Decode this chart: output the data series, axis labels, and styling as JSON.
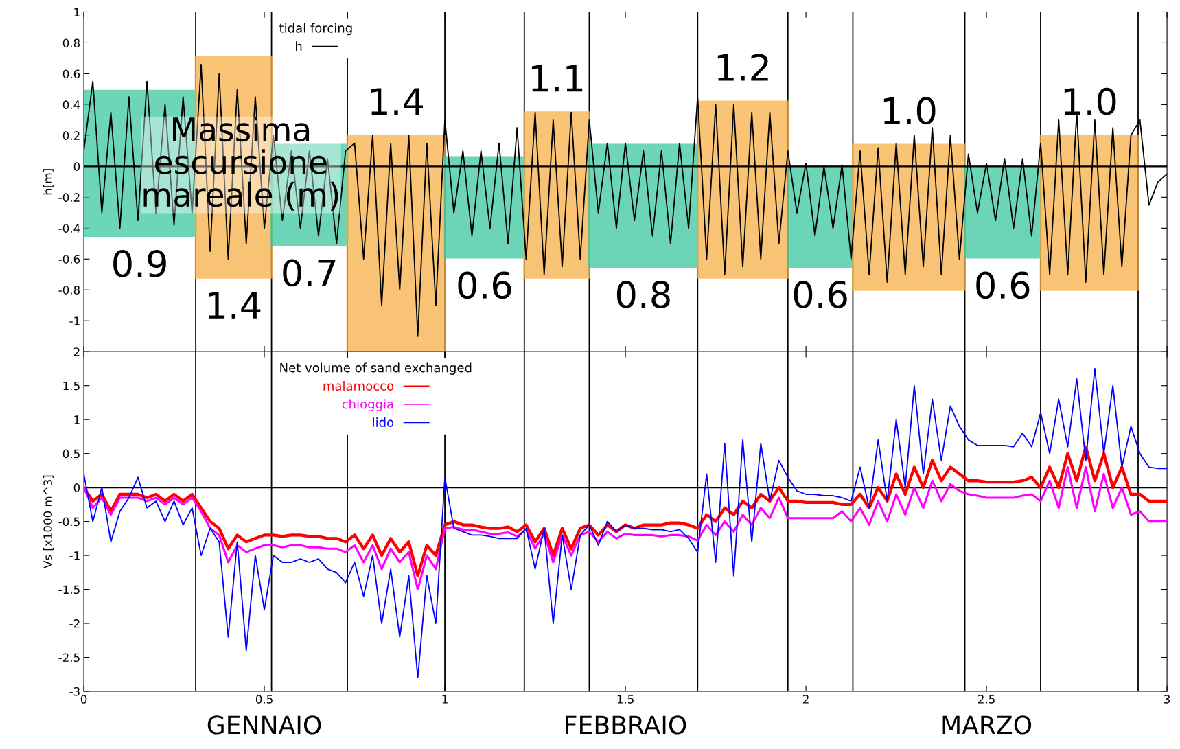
{
  "chart_data": [
    {
      "type": "line",
      "ylabel": "h[m]",
      "legend_title": "tidal forcing",
      "legend": "top left",
      "grid": false,
      "tick_labels": "y",
      "xlim": [
        0,
        3
      ],
      "xticks": [
        0,
        0.5,
        1,
        1.5,
        2,
        2.5,
        3
      ],
      "ylim": [
        -1.2,
        1
      ],
      "yticks": [
        -1,
        -0.8,
        -0.6,
        -0.4,
        -0.2,
        0,
        0.2,
        0.4,
        0.6,
        0.8,
        1
      ],
      "x": [
        0,
        0.025,
        0.05,
        0.075,
        0.1,
        0.125,
        0.15,
        0.175,
        0.2,
        0.225,
        0.25,
        0.275,
        0.3,
        0.325,
        0.35,
        0.375,
        0.4,
        0.425,
        0.45,
        0.475,
        0.5,
        0.525,
        0.55,
        0.575,
        0.6,
        0.625,
        0.65,
        0.675,
        0.7,
        0.725,
        0.75,
        0.775,
        0.8,
        0.825,
        0.85,
        0.875,
        0.9,
        0.925,
        0.95,
        0.975,
        1.0,
        1.025,
        1.05,
        1.075,
        1.1,
        1.125,
        1.15,
        1.175,
        1.2,
        1.225,
        1.25,
        1.275,
        1.3,
        1.325,
        1.35,
        1.375,
        1.4,
        1.425,
        1.45,
        1.475,
        1.5,
        1.525,
        1.55,
        1.575,
        1.6,
        1.625,
        1.65,
        1.675,
        1.7,
        1.725,
        1.75,
        1.775,
        1.8,
        1.825,
        1.85,
        1.875,
        1.9,
        1.925,
        1.95,
        1.975,
        2.0,
        2.025,
        2.05,
        2.075,
        2.1,
        2.125,
        2.15,
        2.175,
        2.2,
        2.225,
        2.25,
        2.275,
        2.3,
        2.325,
        2.35,
        2.375,
        2.4,
        2.425,
        2.45,
        2.475,
        2.5,
        2.525,
        2.55,
        2.575,
        2.6,
        2.625,
        2.65,
        2.675,
        2.7,
        2.725,
        2.75,
        2.775,
        2.8,
        2.825,
        2.85,
        2.875,
        2.9,
        2.925,
        2.95,
        2.975,
        3.0
      ],
      "series": [
        {
          "type": "histogram",
          "bins": [
            0,
            0.31,
            0.52,
            0.73,
            1.0,
            1.22,
            1.4,
            1.7,
            1.95,
            2.13,
            2.44,
            2.65,
            2.92
          ],
          "base": [
            -0.45,
            -0.72,
            -0.51,
            -1.2,
            -0.59,
            -0.72,
            -0.65,
            -0.72,
            -0.65,
            -0.8,
            -0.59,
            -0.8
          ],
          "values": [
            0.94,
            1.43,
            0.65,
            1.4,
            0.65,
            1.07,
            0.79,
            1.14,
            0.65,
            0.94,
            0.59,
            1.0
          ],
          "colors": [
            "#3cc8a0",
            "#f8b048",
            "#3cc8a0",
            "#f8b048",
            "#3cc8a0",
            "#f8b048",
            "#3cc8a0",
            "#f8b048",
            "#3cc8a0",
            "#f8b048",
            "#3cc8a0",
            "#f8b048"
          ]
        },
        {
          "type": "line",
          "name": "h",
          "color": "#000000",
          "values": [
            0.1,
            0.55,
            -0.3,
            0.35,
            -0.4,
            0.45,
            -0.35,
            0.55,
            -0.3,
            0.4,
            -0.38,
            0.45,
            -0.3,
            0.66,
            -0.55,
            0.6,
            -0.6,
            0.5,
            -0.5,
            0.45,
            -0.4,
            0.2,
            -0.35,
            0.1,
            -0.4,
            0.1,
            -0.45,
            0.05,
            -0.5,
            0.1,
            0.15,
            -0.6,
            0.2,
            -0.9,
            0.15,
            -0.8,
            0.2,
            -1.1,
            0.15,
            -0.9,
            0.3,
            -0.3,
            0.1,
            -0.45,
            0.1,
            -0.4,
            0.15,
            -0.5,
            0.25,
            -0.6,
            0.35,
            -0.7,
            0.3,
            -0.65,
            0.35,
            -0.6,
            0.3,
            -0.3,
            0.15,
            -0.4,
            0.15,
            -0.35,
            0.1,
            -0.45,
            0.1,
            -0.5,
            0.15,
            -0.4,
            0.45,
            -0.6,
            0.4,
            -0.7,
            0.4,
            -0.65,
            0.35,
            -0.6,
            0.35,
            -0.5,
            0.1,
            -0.3,
            0.02,
            -0.45,
            0.0,
            -0.4,
            0.01,
            -0.6,
            0.1,
            -0.7,
            0.12,
            -0.75,
            0.15,
            -0.7,
            0.2,
            -0.65,
            0.25,
            -0.7,
            0.2,
            -0.6,
            0.08,
            -0.3,
            0.02,
            -0.35,
            0.05,
            -0.4,
            0.05,
            -0.45,
            0.15,
            -0.7,
            0.3,
            -0.7,
            0.35,
            -0.75,
            0.3,
            -0.7,
            0.25,
            -0.65,
            0.2,
            0.3,
            -0.25,
            -0.1,
            -0.05
          ]
        }
      ],
      "ref_lines": [
        {
          "axis": "y",
          "value": 0,
          "color": "#000000"
        },
        {
          "axis": "x",
          "value": 0.31
        },
        {
          "axis": "x",
          "value": 0.52
        },
        {
          "axis": "x",
          "value": 0.73
        },
        {
          "axis": "x",
          "value": 1.0
        },
        {
          "axis": "x",
          "value": 1.22
        },
        {
          "axis": "x",
          "value": 1.4
        },
        {
          "axis": "x",
          "value": 1.7
        },
        {
          "axis": "x",
          "value": 1.95
        },
        {
          "axis": "x",
          "value": 2.13
        },
        {
          "axis": "x",
          "value": 2.44
        },
        {
          "axis": "x",
          "value": 2.65
        },
        {
          "axis": "x",
          "value": 2.92
        }
      ],
      "annotations": [
        "Massima\nescursione\nmareale (m)",
        {
          "text": "0.9",
          "x": 0.155,
          "y": -0.45
        },
        {
          "text": "1.4",
          "x": 0.415,
          "y": -0.72
        },
        {
          "text": "0.7",
          "x": 0.625,
          "y": -0.51
        },
        {
          "text": "0.6",
          "x": 1.11,
          "y": -0.59
        },
        {
          "text": "0.8",
          "x": 1.55,
          "y": -0.65
        },
        {
          "text": "0.6",
          "x": 2.04,
          "y": -0.65
        },
        {
          "text": "0.6",
          "x": 2.545,
          "y": -0.59
        },
        {
          "text": "1.4",
          "x": 0.865,
          "y": 0.2
        },
        {
          "text": "1.1",
          "x": 1.31,
          "y": 0.35
        },
        {
          "text": "1.2",
          "x": 1.825,
          "y": 0.42
        },
        {
          "text": "1.0",
          "x": 2.285,
          "y": 0.14
        },
        {
          "text": "1.0",
          "x": 2.785,
          "y": 0.2
        }
      ]
    },
    {
      "type": "line",
      "ylabel": "Vs [x1000 m^3]",
      "legend_title": "Net volume of sand exchanged",
      "legend": "top left",
      "grid": false,
      "xlim": [
        0,
        3
      ],
      "xticks": [
        0,
        0.5,
        1,
        1.5,
        2,
        2.5,
        3
      ],
      "ylim": [
        -3,
        2
      ],
      "yticks": [
        -3,
        -2.5,
        -2,
        -1.5,
        -1,
        -0.5,
        0,
        0.5,
        1,
        1.5,
        2
      ],
      "x": [
        0,
        0.025,
        0.05,
        0.075,
        0.1,
        0.125,
        0.15,
        0.175,
        0.2,
        0.225,
        0.25,
        0.275,
        0.3,
        0.325,
        0.35,
        0.375,
        0.4,
        0.425,
        0.45,
        0.475,
        0.5,
        0.525,
        0.55,
        0.575,
        0.6,
        0.625,
        0.65,
        0.675,
        0.7,
        0.725,
        0.75,
        0.775,
        0.8,
        0.825,
        0.85,
        0.875,
        0.9,
        0.925,
        0.95,
        0.975,
        1.0,
        1.025,
        1.05,
        1.075,
        1.1,
        1.125,
        1.15,
        1.175,
        1.2,
        1.225,
        1.25,
        1.275,
        1.3,
        1.325,
        1.35,
        1.375,
        1.4,
        1.425,
        1.45,
        1.475,
        1.5,
        1.525,
        1.55,
        1.575,
        1.6,
        1.625,
        1.65,
        1.675,
        1.7,
        1.725,
        1.75,
        1.775,
        1.8,
        1.825,
        1.85,
        1.875,
        1.9,
        1.925,
        1.95,
        1.975,
        2.0,
        2.025,
        2.05,
        2.075,
        2.1,
        2.125,
        2.15,
        2.175,
        2.2,
        2.225,
        2.25,
        2.275,
        2.3,
        2.325,
        2.35,
        2.375,
        2.4,
        2.425,
        2.45,
        2.475,
        2.5,
        2.525,
        2.55,
        2.575,
        2.6,
        2.625,
        2.65,
        2.675,
        2.7,
        2.725,
        2.75,
        2.775,
        2.8,
        2.825,
        2.85,
        2.875,
        2.9,
        2.925,
        2.95,
        2.975,
        3.0
      ],
      "series": [
        {
          "name": "malamocco",
          "color": "#ff0000",
          "values": [
            0,
            -0.2,
            -0.1,
            -0.35,
            -0.1,
            -0.1,
            -0.1,
            -0.15,
            -0.1,
            -0.2,
            -0.1,
            -0.2,
            -0.1,
            -0.3,
            -0.5,
            -0.6,
            -0.9,
            -0.7,
            -0.8,
            -0.75,
            -0.7,
            -0.7,
            -0.72,
            -0.7,
            -0.7,
            -0.72,
            -0.72,
            -0.75,
            -0.75,
            -0.8,
            -0.7,
            -0.9,
            -0.7,
            -1.0,
            -0.75,
            -0.95,
            -0.8,
            -1.3,
            -0.85,
            -1.0,
            -0.55,
            -0.5,
            -0.55,
            -0.55,
            -0.58,
            -0.6,
            -0.6,
            -0.58,
            -0.65,
            -0.55,
            -0.8,
            -0.6,
            -1.0,
            -0.6,
            -0.9,
            -0.6,
            -0.55,
            -0.7,
            -0.55,
            -0.65,
            -0.55,
            -0.6,
            -0.55,
            -0.55,
            -0.55,
            -0.52,
            -0.52,
            -0.55,
            -0.6,
            -0.4,
            -0.5,
            -0.3,
            -0.4,
            -0.2,
            -0.3,
            -0.1,
            -0.2,
            0.0,
            -0.2,
            -0.2,
            -0.22,
            -0.22,
            -0.22,
            -0.22,
            -0.25,
            -0.25,
            -0.1,
            -0.3,
            0.0,
            -0.2,
            0.2,
            -0.1,
            0.3,
            0.0,
            0.4,
            0.1,
            0.3,
            0.2,
            0.1,
            0.1,
            0.08,
            0.08,
            0.08,
            0.08,
            0.1,
            0.15,
            0.0,
            0.3,
            0.0,
            0.5,
            0.1,
            0.6,
            0.1,
            0.5,
            0.0,
            0.3,
            -0.1,
            -0.1,
            -0.2,
            -0.2,
            -0.2
          ]
        },
        {
          "name": "chioggia",
          "color": "#ff00ff",
          "values": [
            0,
            -0.3,
            -0.15,
            -0.4,
            -0.15,
            -0.15,
            -0.15,
            -0.2,
            -0.15,
            -0.25,
            -0.15,
            -0.25,
            -0.15,
            -0.35,
            -0.6,
            -0.7,
            -1.1,
            -0.85,
            -0.95,
            -0.9,
            -0.85,
            -0.85,
            -0.88,
            -0.85,
            -0.85,
            -0.88,
            -0.88,
            -0.9,
            -0.9,
            -0.95,
            -0.85,
            -1.1,
            -0.85,
            -1.2,
            -0.9,
            -1.1,
            -0.95,
            -1.5,
            -1.0,
            -1.2,
            -0.6,
            -0.58,
            -0.62,
            -0.62,
            -0.65,
            -0.68,
            -0.68,
            -0.66,
            -0.72,
            -0.62,
            -0.9,
            -0.68,
            -1.1,
            -0.7,
            -1.0,
            -0.7,
            -0.65,
            -0.8,
            -0.65,
            -0.75,
            -0.68,
            -0.7,
            -0.7,
            -0.7,
            -0.72,
            -0.7,
            -0.7,
            -0.72,
            -0.78,
            -0.55,
            -0.7,
            -0.5,
            -0.65,
            -0.4,
            -0.55,
            -0.3,
            -0.45,
            -0.15,
            -0.45,
            -0.45,
            -0.45,
            -0.45,
            -0.45,
            -0.45,
            -0.35,
            -0.5,
            -0.3,
            -0.55,
            -0.2,
            -0.5,
            -0.1,
            -0.4,
            0.0,
            -0.3,
            0.1,
            -0.2,
            0.05,
            -0.05,
            -0.1,
            -0.12,
            -0.15,
            -0.15,
            -0.15,
            -0.15,
            -0.12,
            -0.1,
            -0.2,
            0.1,
            -0.3,
            0.3,
            -0.3,
            0.3,
            -0.35,
            0.2,
            -0.3,
            0.0,
            -0.4,
            -0.35,
            -0.5,
            -0.5,
            -0.5
          ]
        },
        {
          "name": "lido",
          "color": "#0000ff",
          "values": [
            0.2,
            -0.5,
            0.0,
            -0.8,
            -0.35,
            -0.15,
            0.15,
            -0.3,
            -0.2,
            -0.5,
            -0.2,
            -0.55,
            -0.3,
            -1.0,
            -0.6,
            -0.8,
            -2.2,
            -0.8,
            -2.4,
            -1.0,
            -1.8,
            -1.0,
            -1.1,
            -1.1,
            -1.05,
            -1.1,
            -1.05,
            -1.2,
            -1.25,
            -1.4,
            -1.1,
            -1.6,
            -1.0,
            -2.0,
            -1.2,
            -2.2,
            -1.3,
            -2.8,
            -1.3,
            -2.0,
            0.15,
            -0.6,
            -0.65,
            -0.7,
            -0.7,
            -0.72,
            -0.75,
            -0.75,
            -0.75,
            -0.6,
            -1.2,
            -0.6,
            -2.0,
            -0.7,
            -1.5,
            -0.7,
            -0.55,
            -0.85,
            -0.5,
            -0.65,
            -0.55,
            -0.6,
            -0.6,
            -0.62,
            -0.62,
            -0.65,
            -0.62,
            -0.75,
            -0.95,
            0.2,
            -1.1,
            0.65,
            -1.3,
            0.7,
            -0.8,
            0.65,
            -0.2,
            0.4,
            0.15,
            -0.05,
            -0.1,
            -0.1,
            -0.12,
            -0.12,
            -0.15,
            -0.2,
            0.3,
            -0.3,
            0.7,
            -0.2,
            1.0,
            0.0,
            1.5,
            0.2,
            1.3,
            0.4,
            1.2,
            0.9,
            0.7,
            0.62,
            0.62,
            0.62,
            0.62,
            0.6,
            0.8,
            0.6,
            1.1,
            0.5,
            1.3,
            0.6,
            1.6,
            0.4,
            1.75,
            0.5,
            1.5,
            0.3,
            0.9,
            0.5,
            0.3,
            0.28,
            0.28
          ]
        }
      ],
      "ref_lines": [
        {
          "axis": "y",
          "value": 0,
          "color": "#000000"
        },
        {
          "axis": "x",
          "value": 0.31
        },
        {
          "axis": "x",
          "value": 0.52
        },
        {
          "axis": "x",
          "value": 0.73
        },
        {
          "axis": "x",
          "value": 1.0
        },
        {
          "axis": "x",
          "value": 1.22
        },
        {
          "axis": "x",
          "value": 1.4
        },
        {
          "axis": "x",
          "value": 1.7
        },
        {
          "axis": "x",
          "value": 1.95
        },
        {
          "axis": "x",
          "value": 2.13
        },
        {
          "axis": "x",
          "value": 2.44
        },
        {
          "axis": "x",
          "value": 2.65
        },
        {
          "axis": "x",
          "value": 2.92
        }
      ],
      "annotations": [
        "GENNAIO",
        "FEBBRAIO",
        "MARZO"
      ]
    }
  ]
}
